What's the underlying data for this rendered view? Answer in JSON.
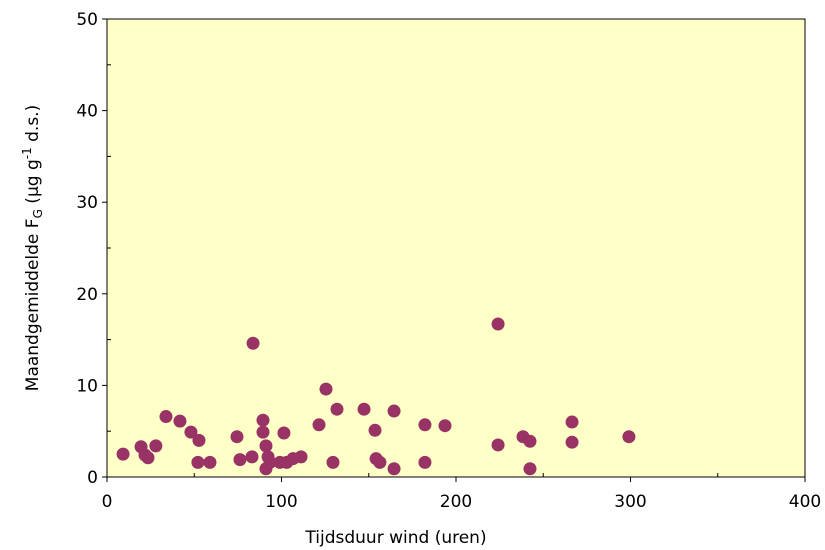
{
  "chart_data": {
    "type": "scatter",
    "xlabel": "Tijdsduur wind (uren)",
    "ylabel": [
      "Maandgemiddelde  F",
      "G",
      " (µg g",
      "-1",
      " d.s.)"
    ],
    "xlim": [
      0,
      400
    ],
    "ylim": [
      0,
      50
    ],
    "xticks": [
      0,
      100,
      200,
      300,
      400
    ],
    "yticks": [
      0,
      10,
      20,
      30,
      40,
      50
    ],
    "xticks_minor": [
      50,
      150,
      250,
      350
    ],
    "yticks_minor": [
      5,
      15,
      25,
      35,
      45
    ],
    "grid": false,
    "plot_background": "#ffffc8",
    "series": [
      {
        "color": "#993366",
        "x": [
          9.2,
          19.5,
          21.8,
          23.5,
          28,
          33.8,
          41.8,
          48.1,
          52.7,
          52.1,
          59,
          74.5,
          76.2,
          83.1,
          83.7,
          89.4,
          89.4,
          91.1,
          92.3,
          91.1,
          93.4,
          99.1,
          101.4,
          103,
          106.6,
          111.2,
          121.5,
          125.5,
          129.5,
          131.8,
          147.3,
          153.6,
          154.2,
          156.4,
          164.5,
          164.5,
          182.2,
          182.2,
          193.7,
          224.1,
          224.1,
          238.4,
          242.4,
          242.4,
          266.5,
          266.5,
          299.1
        ],
        "values": [
          2.5,
          3.3,
          2.4,
          2.1,
          3.4,
          6.6,
          6.1,
          4.9,
          4.0,
          1.6,
          1.6,
          4.4,
          1.9,
          2.2,
          14.6,
          6.2,
          4.9,
          3.4,
          2.2,
          0.9,
          1.6,
          1.6,
          4.8,
          1.6,
          2.0,
          2.2,
          5.7,
          9.6,
          1.6,
          7.4,
          7.4,
          5.1,
          2.0,
          1.6,
          7.2,
          0.9,
          5.7,
          1.6,
          5.6,
          16.7,
          3.5,
          4.4,
          3.9,
          0.9,
          6.0,
          3.8,
          4.4
        ]
      }
    ]
  }
}
